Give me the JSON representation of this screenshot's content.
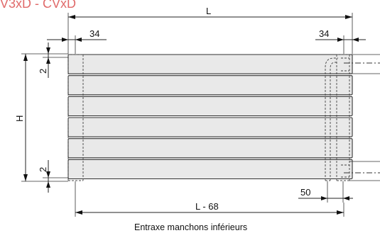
{
  "title": "V3xD - CVxD",
  "labels": {
    "L": "L",
    "left_offset": "34",
    "right_offset": "34",
    "H": "H",
    "top_gap": "2",
    "bottom_gap": "2",
    "fifty": "50",
    "L_minus": "L - 68",
    "caption": "Entraxe manchons inférieurs"
  },
  "panel_count": 6,
  "colors": {
    "title": "#e06a6a",
    "panel_fill": "#e9e9e9",
    "line": "#222222"
  }
}
